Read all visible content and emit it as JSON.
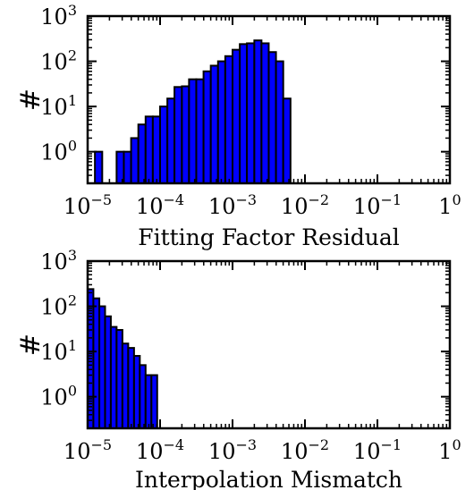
{
  "chart_data": [
    {
      "type": "bar",
      "subtype": "histogram",
      "xlabel": "Fitting Factor Residual",
      "ylabel": "#",
      "xscale": "log",
      "yscale": "log",
      "xlim": [
        1e-05,
        1
      ],
      "ylim": [
        0.2,
        1000
      ],
      "xticks": [
        {
          "base": "10",
          "exp": "−5"
        },
        {
          "base": "10",
          "exp": "−4"
        },
        {
          "base": "10",
          "exp": "−3"
        },
        {
          "base": "10",
          "exp": "−2"
        },
        {
          "base": "10",
          "exp": "−1"
        },
        {
          "base": "1",
          "exp": "0"
        }
      ],
      "yticks": [
        {
          "base": "10",
          "exp": "0"
        },
        {
          "base": "10",
          "exp": "1"
        },
        {
          "base": "10",
          "exp": "2"
        },
        {
          "base": "10",
          "exp": "3"
        }
      ],
      "bar_color": "#0000ff",
      "bins": [
        {
          "x0": 1.26e-05,
          "x1": 1.59e-05,
          "value": 1
        },
        {
          "x0": 2.51e-05,
          "x1": 3.16e-05,
          "value": 1
        },
        {
          "x0": 3.16e-05,
          "x1": 3.98e-05,
          "value": 1
        },
        {
          "x0": 3.98e-05,
          "x1": 5.01e-05,
          "value": 2
        },
        {
          "x0": 5.01e-05,
          "x1": 6.31e-05,
          "value": 4
        },
        {
          "x0": 6.31e-05,
          "x1": 7.94e-05,
          "value": 6
        },
        {
          "x0": 7.94e-05,
          "x1": 0.0001,
          "value": 6
        },
        {
          "x0": 0.0001,
          "x1": 0.000126,
          "value": 10
        },
        {
          "x0": 0.000126,
          "x1": 0.000158,
          "value": 15
        },
        {
          "x0": 0.000158,
          "x1": 0.0002,
          "value": 27
        },
        {
          "x0": 0.0002,
          "x1": 0.000251,
          "value": 28
        },
        {
          "x0": 0.000251,
          "x1": 0.000316,
          "value": 40
        },
        {
          "x0": 0.000316,
          "x1": 0.000398,
          "value": 40
        },
        {
          "x0": 0.000398,
          "x1": 0.000501,
          "value": 60
        },
        {
          "x0": 0.000501,
          "x1": 0.000631,
          "value": 80
        },
        {
          "x0": 0.000631,
          "x1": 0.000794,
          "value": 100
        },
        {
          "x0": 0.000794,
          "x1": 0.001,
          "value": 130
        },
        {
          "x0": 0.001,
          "x1": 0.00126,
          "value": 180
        },
        {
          "x0": 0.00126,
          "x1": 0.00158,
          "value": 240
        },
        {
          "x0": 0.00158,
          "x1": 0.002,
          "value": 250
        },
        {
          "x0": 0.002,
          "x1": 0.00251,
          "value": 290
        },
        {
          "x0": 0.00251,
          "x1": 0.00316,
          "value": 250
        },
        {
          "x0": 0.00316,
          "x1": 0.00398,
          "value": 160
        },
        {
          "x0": 0.00398,
          "x1": 0.00501,
          "value": 100
        },
        {
          "x0": 0.00501,
          "x1": 0.00631,
          "value": 15
        }
      ]
    },
    {
      "type": "bar",
      "subtype": "histogram",
      "xlabel": "Interpolation Mismatch",
      "ylabel": "#",
      "xscale": "log",
      "yscale": "log",
      "xlim": [
        1e-05,
        1
      ],
      "ylim": [
        0.2,
        1000
      ],
      "xticks": [
        {
          "base": "10",
          "exp": "−5"
        },
        {
          "base": "10",
          "exp": "−4"
        },
        {
          "base": "10",
          "exp": "−3"
        },
        {
          "base": "10",
          "exp": "−2"
        },
        {
          "base": "10",
          "exp": "−1"
        },
        {
          "base": "1",
          "exp": "0"
        }
      ],
      "yticks": [
        {
          "base": "10",
          "exp": "0"
        },
        {
          "base": "10",
          "exp": "1"
        },
        {
          "base": "10",
          "exp": "2"
        },
        {
          "base": "10",
          "exp": "3"
        }
      ],
      "bar_color": "#0000ff",
      "bins": [
        {
          "x0": 1e-05,
          "x1": 1.2e-05,
          "value": 240
        },
        {
          "x0": 1.2e-05,
          "x1": 1.45e-05,
          "value": 150
        },
        {
          "x0": 1.45e-05,
          "x1": 1.74e-05,
          "value": 100
        },
        {
          "x0": 1.74e-05,
          "x1": 2.09e-05,
          "value": 60
        },
        {
          "x0": 2.09e-05,
          "x1": 2.51e-05,
          "value": 35
        },
        {
          "x0": 2.51e-05,
          "x1": 3.02e-05,
          "value": 30
        },
        {
          "x0": 3.02e-05,
          "x1": 3.63e-05,
          "value": 15
        },
        {
          "x0": 3.63e-05,
          "x1": 4.37e-05,
          "value": 12
        },
        {
          "x0": 4.37e-05,
          "x1": 5.25e-05,
          "value": 8
        },
        {
          "x0": 5.25e-05,
          "x1": 6.31e-05,
          "value": 5
        },
        {
          "x0": 6.31e-05,
          "x1": 7.59e-05,
          "value": 3
        },
        {
          "x0": 7.59e-05,
          "x1": 9.12e-05,
          "value": 3
        }
      ]
    }
  ]
}
